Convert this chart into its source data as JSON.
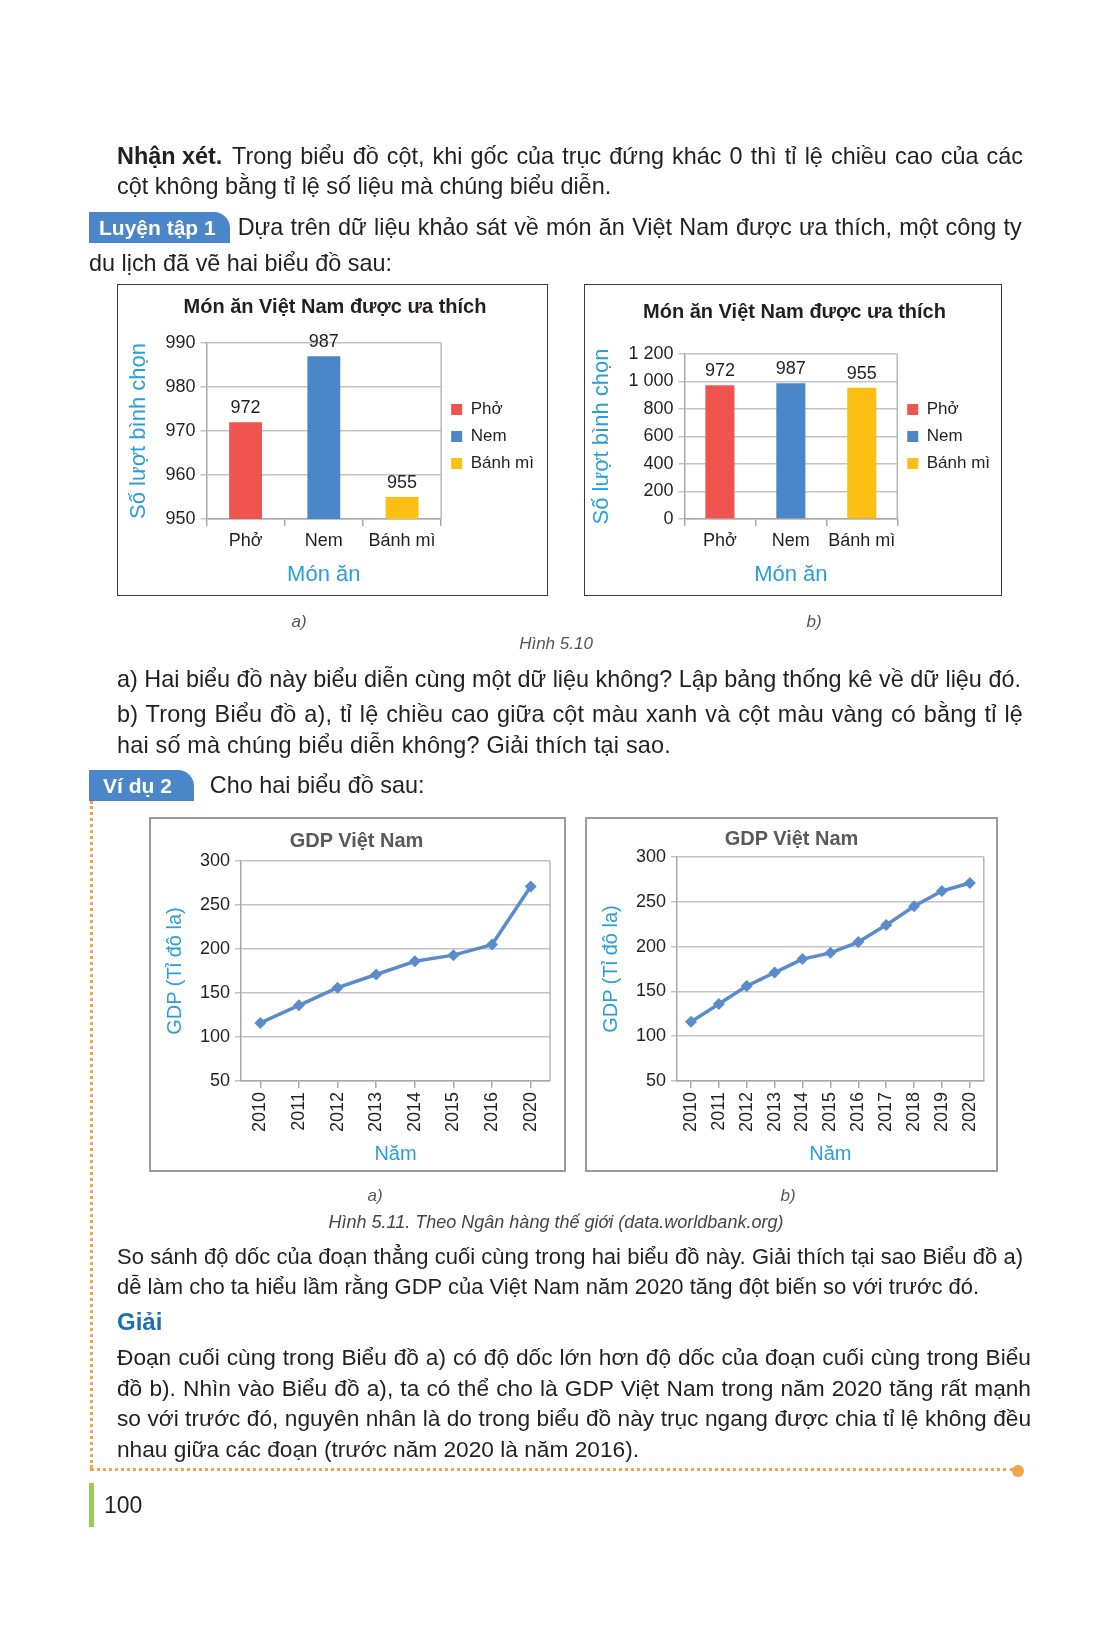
{
  "chart_data": [
    {
      "type": "bar",
      "title": "Món ăn Việt Nam được ưa thích",
      "xlabel": "Món ăn",
      "ylabel": "Số lượt bình chọn",
      "categories": [
        "Phở",
        "Nem",
        "Bánh mì"
      ],
      "series": [
        {
          "name": "Phở",
          "color": "#f0544f",
          "values": [
            972,
            null,
            null
          ]
        },
        {
          "name": "Nem",
          "color": "#4a86c8",
          "values": [
            null,
            987,
            null
          ]
        },
        {
          "name": "Bánh mì",
          "color": "#fdbf14",
          "values": [
            null,
            null,
            955
          ]
        }
      ],
      "ylim": [
        950,
        990
      ],
      "yticks": [
        950,
        960,
        970,
        980,
        990
      ],
      "grid": "y",
      "legend": "right",
      "data_labels": true,
      "annotations": [
        "Nhận xét. Trong biểu đồ cột, khi gốc của trục đứng khác 0 thì tỉ lệ chiều cao của các cột không bằng tỉ lệ số liệu mà chúng biểu diễn.",
        "Luyện tập 1 Dựa trên dữ liệu khảo sát về món ăn Việt Nam được ưa thích, một công ty du lịch đã vẽ hai biểu đồ sau:",
        "a)",
        "Hình 5.10"
      ]
    },
    {
      "type": "bar",
      "title": "Món ăn Việt Nam được ưa thích",
      "xlabel": "Món ăn",
      "ylabel": "Số lượt bình chọn",
      "categories": [
        "Phở",
        "Nem",
        "Bánh mì"
      ],
      "series": [
        {
          "name": "Phở",
          "color": "#f0544f",
          "values": [
            972,
            null,
            null
          ]
        },
        {
          "name": "Nem",
          "color": "#4a86c8",
          "values": [
            null,
            987,
            null
          ]
        },
        {
          "name": "Bánh mì",
          "color": "#fdbf14",
          "values": [
            null,
            null,
            955
          ]
        }
      ],
      "ylim": [
        0,
        1200
      ],
      "yticks": [
        0,
        200,
        400,
        600,
        800,
        {
          "value": 1000,
          "label": "1 000"
        },
        {
          "value": 1200,
          "label": "1 200"
        }
      ],
      "grid": "y",
      "legend": "right",
      "data_labels": true,
      "annotations": [
        "b)",
        "a) Hai biểu đồ này biểu diễn cùng một dữ liệu không? Lập bảng thống kê về dữ liệu đó.",
        "b) Trong Biểu đồ a), tỉ lệ chiều cao giữa cột màu xanh và cột màu vàng có bằng tỉ lệ hai số mà chúng biểu diễn không? Giải thích tại sao."
      ]
    },
    {
      "type": "line",
      "title": "GDP Việt Nam",
      "xlabel": "Năm",
      "ylabel": "GDP (Tỉ đô la)",
      "categories": [
        "2010",
        "2011",
        "2012",
        "2013",
        "2014",
        "2015",
        "2016",
        "2020"
      ],
      "values": [
        116,
        136,
        156,
        171,
        186,
        193,
        205,
        271
      ],
      "color": "#5a8bcb",
      "ylim": [
        50,
        300
      ],
      "yticks": [
        50,
        100,
        150,
        200,
        250,
        300
      ],
      "grid": "y",
      "marker": "diamond",
      "line_style": "solid",
      "annotations": [
        "Ví dụ 2",
        "Cho hai biểu đồ sau:",
        "a)",
        "Hình 5.11. Theo Ngân hàng thế giới (data.worldbank.org)"
      ]
    },
    {
      "type": "line",
      "title": "GDP Việt Nam",
      "xlabel": "Năm",
      "ylabel": "GDP (Tỉ đô la)",
      "categories": [
        "2010",
        "2011",
        "2012",
        "2013",
        "2014",
        "2015",
        "2016",
        "2017",
        "2018",
        "2019",
        "2020"
      ],
      "values": [
        116,
        136,
        156,
        171,
        186,
        193,
        205,
        224,
        245,
        262,
        271
      ],
      "color": "#5a8bcb",
      "ylim": [
        50,
        300
      ],
      "yticks": [
        50,
        100,
        150,
        200,
        250,
        300
      ],
      "grid": "y",
      "marker": "diamond",
      "line_style": "solid",
      "annotations": [
        "b)",
        "So sánh độ dốc của đoạn thẳng cuối cùng trong hai biểu đồ này. Giải thích tại sao Biểu đồ a) dễ làm cho ta hiểu lầm rằng GDP của Việt Nam năm 2020 tăng đột biến so với trước đó.",
        "Giải",
        "Đoạn cuối cùng trong Biểu đồ a) có độ dốc lớn hơn độ dốc của đoạn cuối cùng trong Biểu đồ b). Nhìn vào Biểu đồ a), ta có thể cho là GDP Việt Nam trong năm 2020 tăng rất mạnh so với trước đó, nguyên nhân là do trong biểu đồ này trục ngang được chia tỉ lệ không đều nhau giữa các đoạn (trước năm 2020 là năm 2016).",
        "100"
      ]
    }
  ]
}
